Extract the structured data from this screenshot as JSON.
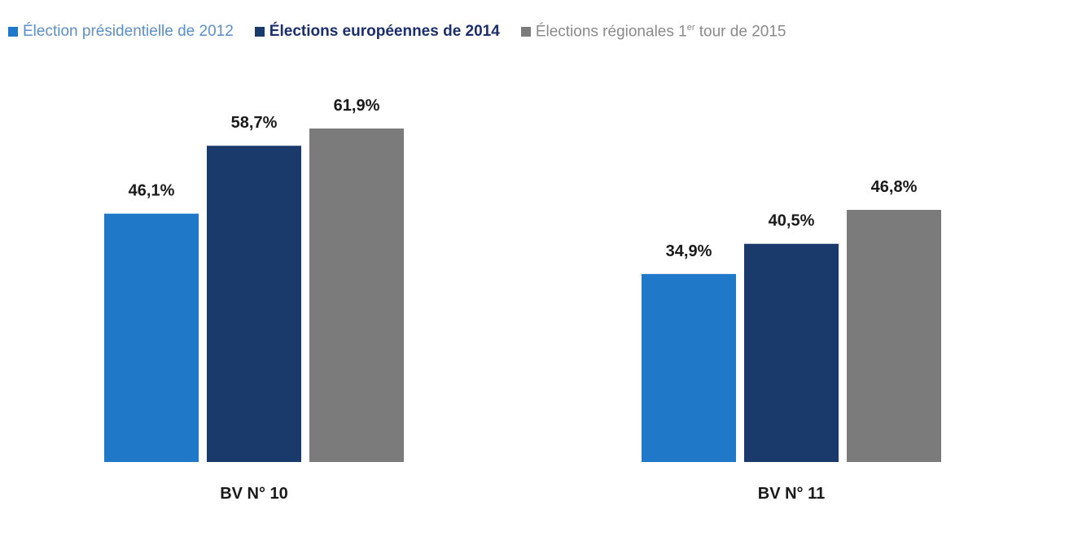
{
  "chart_data": {
    "type": "bar",
    "categories": [
      "BV N° 10",
      "BV N° 11"
    ],
    "series": [
      {
        "name": "Élection présidentielle de 2012",
        "color": "#1f78c8",
        "values": [
          46.1,
          34.9
        ],
        "labels": [
          "46,1%",
          "34,9%"
        ]
      },
      {
        "name": "Élections européennes de 2014",
        "color": "#1a3a6b",
        "values": [
          58.7,
          40.5
        ],
        "labels": [
          "58,7%",
          "40,5%"
        ]
      },
      {
        "name": "Élections régionales 1er tour de 2015",
        "color": "#7b7b7b",
        "values": [
          61.9,
          46.8
        ],
        "labels": [
          "61,9%",
          "46,8%"
        ]
      }
    ],
    "legend": {
      "items": [
        {
          "text": "Élection présidentielle de 2012",
          "color": "#1f78c8",
          "text_color": "#5b8fc7",
          "bold": false
        },
        {
          "text": "Élections européennes de 2014",
          "color": "#1a3a6b",
          "text_color": "#1a2f6b",
          "bold": true
        },
        {
          "text_before": "Élections régionales 1",
          "text_sup": "er",
          "text_after": " tour de 2015",
          "color": "#7b7b7b",
          "text_color": "#8a8a8a",
          "bold": false
        }
      ],
      "position": "top"
    },
    "ylim": [
      0,
      70
    ],
    "title": "",
    "xlabel": "",
    "ylabel": ""
  }
}
